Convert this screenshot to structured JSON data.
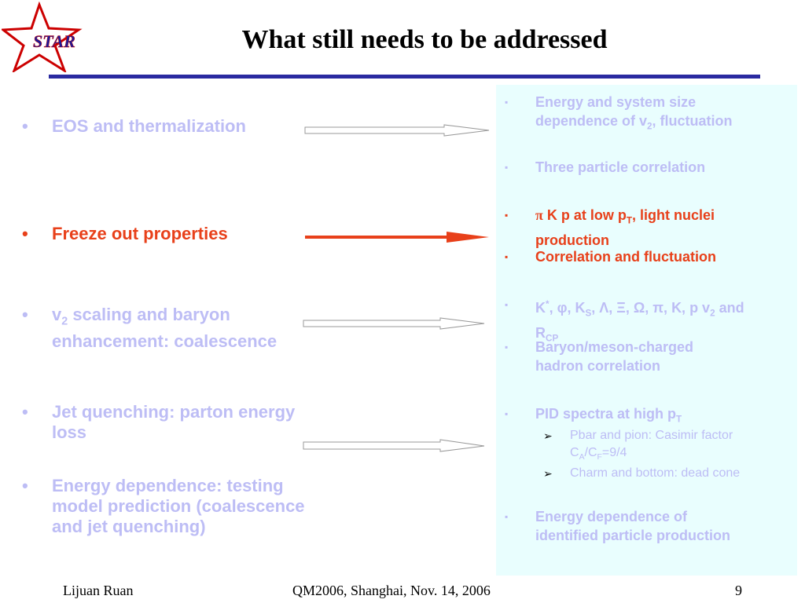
{
  "logo": {
    "text": "STAR",
    "colors": {
      "star": "#cc0000",
      "text": "#1a1a9a"
    }
  },
  "title": "What still needs to be addressed",
  "bullet_char": "•",
  "panel_marker": "▪",
  "sub_marker": "➢",
  "left_bullets": [
    {
      "line1": "EOS and thermalization"
    },
    {
      "line1": "Freeze out properties"
    },
    {
      "line1_pre": "v",
      "line1_sub": "2",
      "line1_post": " scaling and baryon",
      "line2": "enhancement: coalescence"
    },
    {
      "line1": "Jet quenching:  parton energy",
      "line2": "loss"
    },
    {
      "line1": "Energy dependence: testing",
      "line2": "model prediction (coalescence",
      "line3": "and jet quenching)"
    }
  ],
  "panel": {
    "item1": {
      "line1": "Energy and system size",
      "line2_pre": "dependence of v",
      "line2_sub": "2",
      "line2_post": ", fluctuation"
    },
    "item2": {
      "line1": "Three particle correlation"
    },
    "item3": {
      "pi": "π",
      "line1_mid": " K p at low p",
      "line1_sub": "T",
      "line1_post": ", light nuclei",
      "line2": "production"
    },
    "item4": {
      "line1": "Correlation and fluctuation"
    },
    "item5": {
      "k": "K",
      "k_sup": "*",
      "phi": ", φ, K",
      "s": "S",
      "rest": ", Λ, Ξ, Ω, π, K, p v",
      "v_sub": "2",
      "end": " and",
      "line2_pre": "R",
      "line2_sub": "CP"
    },
    "item6": {
      "line1": "Baryon/meson-charged",
      "line2": "hadron correlation"
    },
    "item7": {
      "line1_pre": "PID spectra at high p",
      "line1_sub": "T"
    },
    "sub1": {
      "line1": "Pbar and pion: Casimir factor",
      "line2_a": "C",
      "line2_a_sub": "A",
      "line2_b": "/C",
      "line2_b_sub": "F",
      "line2_c": "=9/4"
    },
    "sub2": {
      "line1": "Charm and bottom: dead cone"
    },
    "item8": {
      "line1": "Energy dependence of",
      "line2": "identified particle production"
    }
  },
  "footer": {
    "author": "Lijuan Ruan",
    "conference": "QM2006, Shanghai, Nov. 14, 2006",
    "page": "9"
  },
  "colors": {
    "highlight": "#e8401a",
    "faded": "#bdbdf5",
    "rule": "#2a2aa0",
    "panel_bg": "#e9fefe"
  }
}
